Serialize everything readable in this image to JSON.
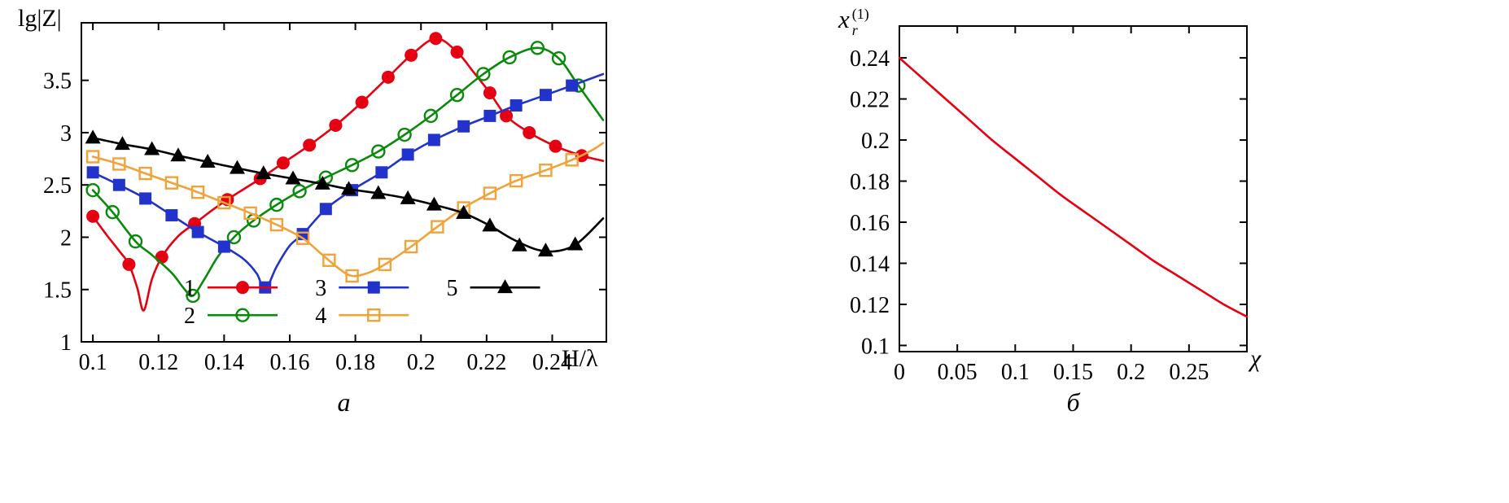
{
  "figure": {
    "captions": {
      "a": "а",
      "b": "б"
    }
  },
  "chart_data": [
    {
      "id": "a",
      "type": "line",
      "title": "",
      "ylabel": "lg|Z|",
      "xlabel": "H/λ",
      "xlim": [
        0.0965,
        0.2565
      ],
      "ylim": [
        1,
        4.05
      ],
      "grid": false,
      "legend_position": "inside-bottom-center",
      "xticks": [
        0.1,
        0.12,
        0.14,
        0.16,
        0.18,
        0.2,
        0.22,
        0.24
      ],
      "xtick_labels": [
        "0.1",
        "0.12",
        "0.14",
        "0.16",
        "0.18",
        "0.2",
        "0.22",
        "0.24"
      ],
      "yticks": [
        1,
        1.5,
        2,
        2.5,
        3,
        3.5
      ],
      "ytick_labels": [
        "1",
        "1.5",
        "2",
        "2.5",
        "3",
        "3.5"
      ],
      "series": [
        {
          "name": "1",
          "color": "#e60011",
          "marker": "circle",
          "marker_filled": true,
          "line": [
            [
              0.1,
              2.2
            ],
            [
              0.104,
              2.03
            ],
            [
              0.108,
              1.87
            ],
            [
              0.111,
              1.74
            ],
            [
              0.1135,
              1.52
            ],
            [
              0.1155,
              1.3
            ],
            [
              0.118,
              1.6
            ],
            [
              0.121,
              1.81
            ],
            [
              0.126,
              2.01
            ],
            [
              0.131,
              2.13
            ],
            [
              0.136,
              2.25
            ],
            [
              0.141,
              2.36
            ],
            [
              0.146,
              2.46
            ],
            [
              0.151,
              2.56
            ],
            [
              0.158,
              2.71
            ],
            [
              0.166,
              2.88
            ],
            [
              0.174,
              3.07
            ],
            [
              0.182,
              3.29
            ],
            [
              0.19,
              3.53
            ],
            [
              0.197,
              3.74
            ],
            [
              0.2045,
              3.9
            ],
            [
              0.211,
              3.77
            ],
            [
              0.216,
              3.58
            ],
            [
              0.221,
              3.38
            ],
            [
              0.226,
              3.16
            ],
            [
              0.233,
              3.0
            ],
            [
              0.241,
              2.87
            ],
            [
              0.249,
              2.78
            ],
            [
              0.2555,
              2.73
            ]
          ],
          "markers": [
            [
              0.1,
              2.2
            ],
            [
              0.111,
              1.74
            ],
            [
              0.121,
              1.81
            ],
            [
              0.131,
              2.13
            ],
            [
              0.141,
              2.36
            ],
            [
              0.151,
              2.56
            ],
            [
              0.158,
              2.71
            ],
            [
              0.166,
              2.88
            ],
            [
              0.174,
              3.07
            ],
            [
              0.182,
              3.29
            ],
            [
              0.19,
              3.53
            ],
            [
              0.197,
              3.74
            ],
            [
              0.2045,
              3.9
            ],
            [
              0.211,
              3.77
            ],
            [
              0.221,
              3.38
            ],
            [
              0.226,
              3.16
            ],
            [
              0.233,
              3.0
            ],
            [
              0.241,
              2.87
            ],
            [
              0.249,
              2.78
            ]
          ]
        },
        {
          "name": "2",
          "color": "#0a8a0a",
          "marker": "circle",
          "marker_filled": false,
          "line": [
            [
              0.1,
              2.45
            ],
            [
              0.106,
              2.24
            ],
            [
              0.113,
              1.96
            ],
            [
              0.118,
              1.83
            ],
            [
              0.124,
              1.66
            ],
            [
              0.128,
              1.5
            ],
            [
              0.1305,
              1.44
            ],
            [
              0.134,
              1.6
            ],
            [
              0.138,
              1.81
            ],
            [
              0.143,
              2.0
            ],
            [
              0.149,
              2.16
            ],
            [
              0.156,
              2.31
            ],
            [
              0.163,
              2.44
            ],
            [
              0.171,
              2.57
            ],
            [
              0.179,
              2.69
            ],
            [
              0.187,
              2.82
            ],
            [
              0.195,
              2.98
            ],
            [
              0.203,
              3.16
            ],
            [
              0.211,
              3.36
            ],
            [
              0.219,
              3.56
            ],
            [
              0.227,
              3.72
            ],
            [
              0.2355,
              3.81
            ],
            [
              0.242,
              3.71
            ],
            [
              0.248,
              3.45
            ],
            [
              0.2555,
              3.12
            ]
          ],
          "markers": [
            [
              0.1,
              2.45
            ],
            [
              0.106,
              2.24
            ],
            [
              0.113,
              1.96
            ],
            [
              0.1305,
              1.44
            ],
            [
              0.143,
              2.0
            ],
            [
              0.149,
              2.16
            ],
            [
              0.156,
              2.31
            ],
            [
              0.163,
              2.44
            ],
            [
              0.171,
              2.57
            ],
            [
              0.179,
              2.69
            ],
            [
              0.187,
              2.82
            ],
            [
              0.195,
              2.98
            ],
            [
              0.203,
              3.16
            ],
            [
              0.211,
              3.36
            ],
            [
              0.219,
              3.56
            ],
            [
              0.227,
              3.72
            ],
            [
              0.2355,
              3.81
            ],
            [
              0.242,
              3.71
            ],
            [
              0.248,
              3.45
            ]
          ]
        },
        {
          "name": "3",
          "color": "#2233cc",
          "marker": "square",
          "marker_filled": true,
          "line": [
            [
              0.1,
              2.62
            ],
            [
              0.108,
              2.5
            ],
            [
              0.116,
              2.37
            ],
            [
              0.124,
              2.21
            ],
            [
              0.132,
              2.05
            ],
            [
              0.14,
              1.91
            ],
            [
              0.146,
              1.79
            ],
            [
              0.15,
              1.65
            ],
            [
              0.1525,
              1.5
            ],
            [
              0.156,
              1.72
            ],
            [
              0.16,
              1.92
            ],
            [
              0.164,
              2.03
            ],
            [
              0.171,
              2.27
            ],
            [
              0.179,
              2.45
            ],
            [
              0.188,
              2.62
            ],
            [
              0.196,
              2.79
            ],
            [
              0.204,
              2.93
            ],
            [
              0.213,
              3.06
            ],
            [
              0.221,
              3.16
            ],
            [
              0.229,
              3.26
            ],
            [
              0.238,
              3.36
            ],
            [
              0.246,
              3.45
            ],
            [
              0.2555,
              3.56
            ]
          ],
          "markers": [
            [
              0.1,
              2.62
            ],
            [
              0.108,
              2.5
            ],
            [
              0.116,
              2.37
            ],
            [
              0.124,
              2.21
            ],
            [
              0.132,
              2.05
            ],
            [
              0.14,
              1.91
            ],
            [
              0.1525,
              1.52
            ],
            [
              0.164,
              2.03
            ],
            [
              0.171,
              2.27
            ],
            [
              0.179,
              2.45
            ],
            [
              0.188,
              2.62
            ],
            [
              0.196,
              2.79
            ],
            [
              0.204,
              2.93
            ],
            [
              0.213,
              3.06
            ],
            [
              0.221,
              3.16
            ],
            [
              0.229,
              3.26
            ],
            [
              0.238,
              3.36
            ],
            [
              0.246,
              3.45
            ]
          ]
        },
        {
          "name": "4",
          "color": "#efa33a",
          "marker": "square",
          "marker_filled": false,
          "line": [
            [
              0.1,
              2.77
            ],
            [
              0.108,
              2.7
            ],
            [
              0.116,
              2.61
            ],
            [
              0.124,
              2.52
            ],
            [
              0.132,
              2.43
            ],
            [
              0.14,
              2.33
            ],
            [
              0.148,
              2.23
            ],
            [
              0.156,
              2.12
            ],
            [
              0.164,
              1.99
            ],
            [
              0.17,
              1.83
            ],
            [
              0.175,
              1.7
            ],
            [
              0.179,
              1.63
            ],
            [
              0.184,
              1.66
            ],
            [
              0.189,
              1.74
            ],
            [
              0.197,
              1.91
            ],
            [
              0.205,
              2.1
            ],
            [
              0.213,
              2.28
            ],
            [
              0.221,
              2.42
            ],
            [
              0.229,
              2.54
            ],
            [
              0.238,
              2.64
            ],
            [
              0.246,
              2.74
            ],
            [
              0.252,
              2.83
            ],
            [
              0.2555,
              2.9
            ]
          ],
          "markers": [
            [
              0.1,
              2.77
            ],
            [
              0.108,
              2.7
            ],
            [
              0.116,
              2.61
            ],
            [
              0.124,
              2.52
            ],
            [
              0.132,
              2.43
            ],
            [
              0.14,
              2.33
            ],
            [
              0.148,
              2.23
            ],
            [
              0.156,
              2.12
            ],
            [
              0.164,
              1.99
            ],
            [
              0.172,
              1.78
            ],
            [
              0.179,
              1.63
            ],
            [
              0.189,
              1.74
            ],
            [
              0.197,
              1.91
            ],
            [
              0.205,
              2.1
            ],
            [
              0.213,
              2.28
            ],
            [
              0.221,
              2.42
            ],
            [
              0.229,
              2.54
            ],
            [
              0.238,
              2.64
            ],
            [
              0.246,
              2.74
            ]
          ]
        },
        {
          "name": "5",
          "color": "#000000",
          "marker": "triangle",
          "marker_filled": true,
          "line": [
            [
              0.1,
              2.95
            ],
            [
              0.109,
              2.89
            ],
            [
              0.118,
              2.84
            ],
            [
              0.126,
              2.78
            ],
            [
              0.135,
              2.72
            ],
            [
              0.144,
              2.66
            ],
            [
              0.152,
              2.61
            ],
            [
              0.161,
              2.56
            ],
            [
              0.17,
              2.51
            ],
            [
              0.178,
              2.46
            ],
            [
              0.187,
              2.42
            ],
            [
              0.196,
              2.37
            ],
            [
              0.204,
              2.31
            ],
            [
              0.213,
              2.23
            ],
            [
              0.221,
              2.11
            ],
            [
              0.228,
              1.98
            ],
            [
              0.2355,
              1.88
            ],
            [
              0.242,
              1.87
            ],
            [
              0.248,
              1.95
            ],
            [
              0.2555,
              2.18
            ]
          ],
          "markers": [
            [
              0.1,
              2.95
            ],
            [
              0.109,
              2.89
            ],
            [
              0.118,
              2.84
            ],
            [
              0.126,
              2.78
            ],
            [
              0.135,
              2.72
            ],
            [
              0.144,
              2.66
            ],
            [
              0.152,
              2.61
            ],
            [
              0.161,
              2.56
            ],
            [
              0.17,
              2.51
            ],
            [
              0.178,
              2.46
            ],
            [
              0.187,
              2.42
            ],
            [
              0.196,
              2.37
            ],
            [
              0.204,
              2.31
            ],
            [
              0.213,
              2.23
            ],
            [
              0.221,
              2.11
            ],
            [
              0.23,
              1.92
            ],
            [
              0.238,
              1.87
            ],
            [
              0.247,
              1.93
            ]
          ]
        }
      ],
      "legend": {
        "row_y": [
          1.52,
          1.255
        ],
        "col_x": [
          0.1295,
          0.1695,
          0.2095
        ],
        "rows": [
          [
            {
              "label": "1",
              "series": 0
            },
            {
              "label": "3",
              "series": 2
            },
            {
              "label": "5",
              "series": 4
            }
          ],
          [
            {
              "label": "2",
              "series": 1
            },
            {
              "label": "4",
              "series": 3
            }
          ]
        ]
      }
    },
    {
      "id": "b",
      "type": "line",
      "title": "",
      "ylabel_base": "x",
      "ylabel_sup": "(1)",
      "ylabel_sub": "r",
      "xlabel": "χ",
      "xlim": [
        0,
        0.3
      ],
      "ylim": [
        0.097,
        0.2555
      ],
      "grid": false,
      "xticks": [
        0,
        0.05,
        0.1,
        0.15,
        0.2,
        0.25
      ],
      "xtick_labels": [
        "0",
        "0.05",
        "0.1",
        "0.15",
        "0.2",
        "0.25"
      ],
      "yticks": [
        0.1,
        0.12,
        0.14,
        0.16,
        0.18,
        0.2,
        0.22,
        0.24
      ],
      "ytick_labels": [
        "0.1",
        "0.12",
        "0.14",
        "0.16",
        "0.18",
        "0.2",
        "0.22",
        "0.24"
      ],
      "series": [
        {
          "name": "xr1",
          "color": "#e60011",
          "marker": "none",
          "marker_filled": false,
          "line": [
            [
              0,
              0.24
            ],
            [
              0.02,
              0.23
            ],
            [
              0.04,
              0.22
            ],
            [
              0.06,
              0.21
            ],
            [
              0.08,
              0.2
            ],
            [
              0.1,
              0.191
            ],
            [
              0.12,
              0.182
            ],
            [
              0.14,
              0.173
            ],
            [
              0.16,
              0.165
            ],
            [
              0.18,
              0.157
            ],
            [
              0.2,
              0.149
            ],
            [
              0.22,
              0.141
            ],
            [
              0.24,
              0.134
            ],
            [
              0.26,
              0.127
            ],
            [
              0.28,
              0.12
            ],
            [
              0.3,
              0.114
            ]
          ],
          "markers": []
        }
      ]
    }
  ]
}
